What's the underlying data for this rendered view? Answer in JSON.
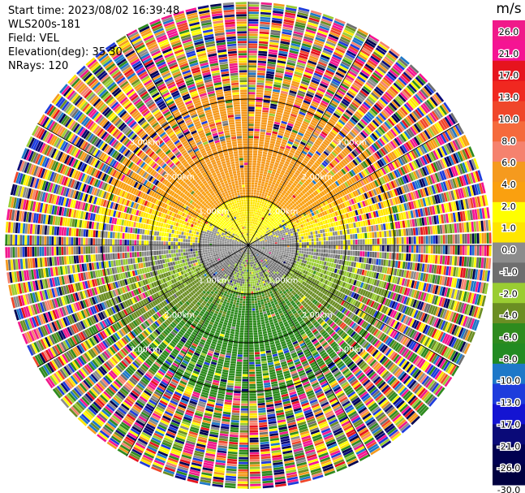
{
  "header": {
    "start_time": "Start time: 2023/08/02 16:39:48",
    "instrument": "WLS200s-181",
    "field": "Field: VEL",
    "elevation": "Elevation(deg): 35.30",
    "nrays": "NRays: 120"
  },
  "chart_data": {
    "type": "heatmap",
    "projection": "polar-ppi",
    "field": "VEL",
    "unit": "m/s",
    "n_rays": 120,
    "elevation_deg": 35.3,
    "range_rings_km": [
      1.0,
      2.0,
      3.0
    ],
    "ring_labels": [
      "1.00km",
      "2.00km",
      "3.00km"
    ],
    "max_range_km": 5.0,
    "colorbar": {
      "label": "m/s",
      "ticks": [
        "26.0",
        "21.0",
        "17.0",
        "13.0",
        "10.0",
        "8.0",
        "6.0",
        "4.0",
        "2.0",
        "1.0",
        "0.0",
        "-1.0",
        "-2.0",
        "-4.0",
        "-6.0",
        "-8.0",
        "-10.0",
        "-13.0",
        "-17.0",
        "-21.0",
        "-26.0",
        "-30.0"
      ],
      "colors": [
        "#f01a8a",
        "#f51493",
        "#e6141e",
        "#f02820",
        "#f0462a",
        "#f56a3c",
        "#f5826e",
        "#f59a1e",
        "#faa00f",
        "#ffff00",
        "#ffe600",
        "#8c8c8c",
        "#6e6e6e",
        "#9acd32",
        "#6b8e23",
        "#2e8b1e",
        "#228b22",
        "#1e78c8",
        "#1e3cdc",
        "#1414d2",
        "#0a0a78",
        "#000050",
        "#000040"
      ]
    },
    "wind_regimes": [
      {
        "description": "positive (receding) velocities",
        "range_ms": [
          1.0,
          6.0
        ],
        "sector": "north"
      },
      {
        "description": "near zero velocities",
        "range_ms": [
          -1.0,
          1.0
        ],
        "sector": "east-center"
      },
      {
        "description": "negative (approaching) velocities",
        "range_ms": [
          -8.0,
          -2.0
        ],
        "sector": "south"
      }
    ]
  }
}
